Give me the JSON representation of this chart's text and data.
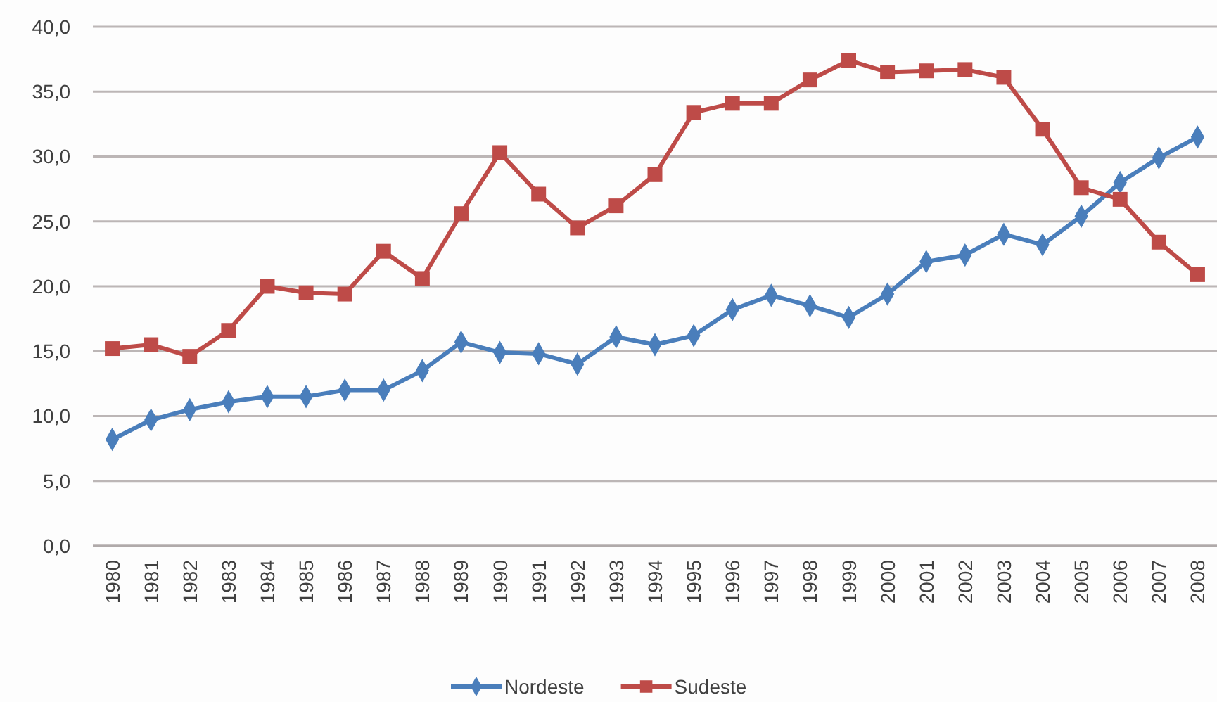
{
  "chart_data": {
    "type": "line",
    "categories": [
      "1980",
      "1981",
      "1982",
      "1983",
      "1984",
      "1985",
      "1986",
      "1987",
      "1988",
      "1989",
      "1990",
      "1991",
      "1992",
      "1993",
      "1994",
      "1995",
      "1996",
      "1997",
      "1998",
      "1999",
      "2000",
      "2001",
      "2002",
      "2003",
      "2004",
      "2005",
      "2006",
      "2007",
      "2008"
    ],
    "series": [
      {
        "name": "Nordeste",
        "color": "#4a7ebb",
        "marker": "diamond",
        "values": [
          8.2,
          9.7,
          10.5,
          11.1,
          11.5,
          11.5,
          12.0,
          12.0,
          13.5,
          15.7,
          14.9,
          14.8,
          14.0,
          16.1,
          15.5,
          16.2,
          18.2,
          19.3,
          18.5,
          17.6,
          19.4,
          21.9,
          22.4,
          24.0,
          23.2,
          25.4,
          28.0,
          29.9,
          31.5
        ]
      },
      {
        "name": "Sudeste",
        "color": "#be4b48",
        "marker": "square",
        "values": [
          15.2,
          15.5,
          14.6,
          16.6,
          20.0,
          19.5,
          19.4,
          22.7,
          20.6,
          25.6,
          30.3,
          27.1,
          24.5,
          26.2,
          28.6,
          33.4,
          34.1,
          34.1,
          35.9,
          37.4,
          36.5,
          36.6,
          36.7,
          36.1,
          32.1,
          27.6,
          26.7,
          23.4,
          20.9
        ]
      }
    ],
    "ylim": [
      0,
      40
    ],
    "yticks": [
      {
        "value": 0,
        "label": "0,0"
      },
      {
        "value": 5,
        "label": "5,0"
      },
      {
        "value": 10,
        "label": "10,0"
      },
      {
        "value": 15,
        "label": "15,0"
      },
      {
        "value": 20,
        "label": "20,0"
      },
      {
        "value": 25,
        "label": "25,0"
      },
      {
        "value": 30,
        "label": "30,0"
      },
      {
        "value": 35,
        "label": "35,0"
      },
      {
        "value": 40,
        "label": "40,0"
      }
    ],
    "grid": "y",
    "legend": "bottom",
    "line_style": "solid"
  }
}
